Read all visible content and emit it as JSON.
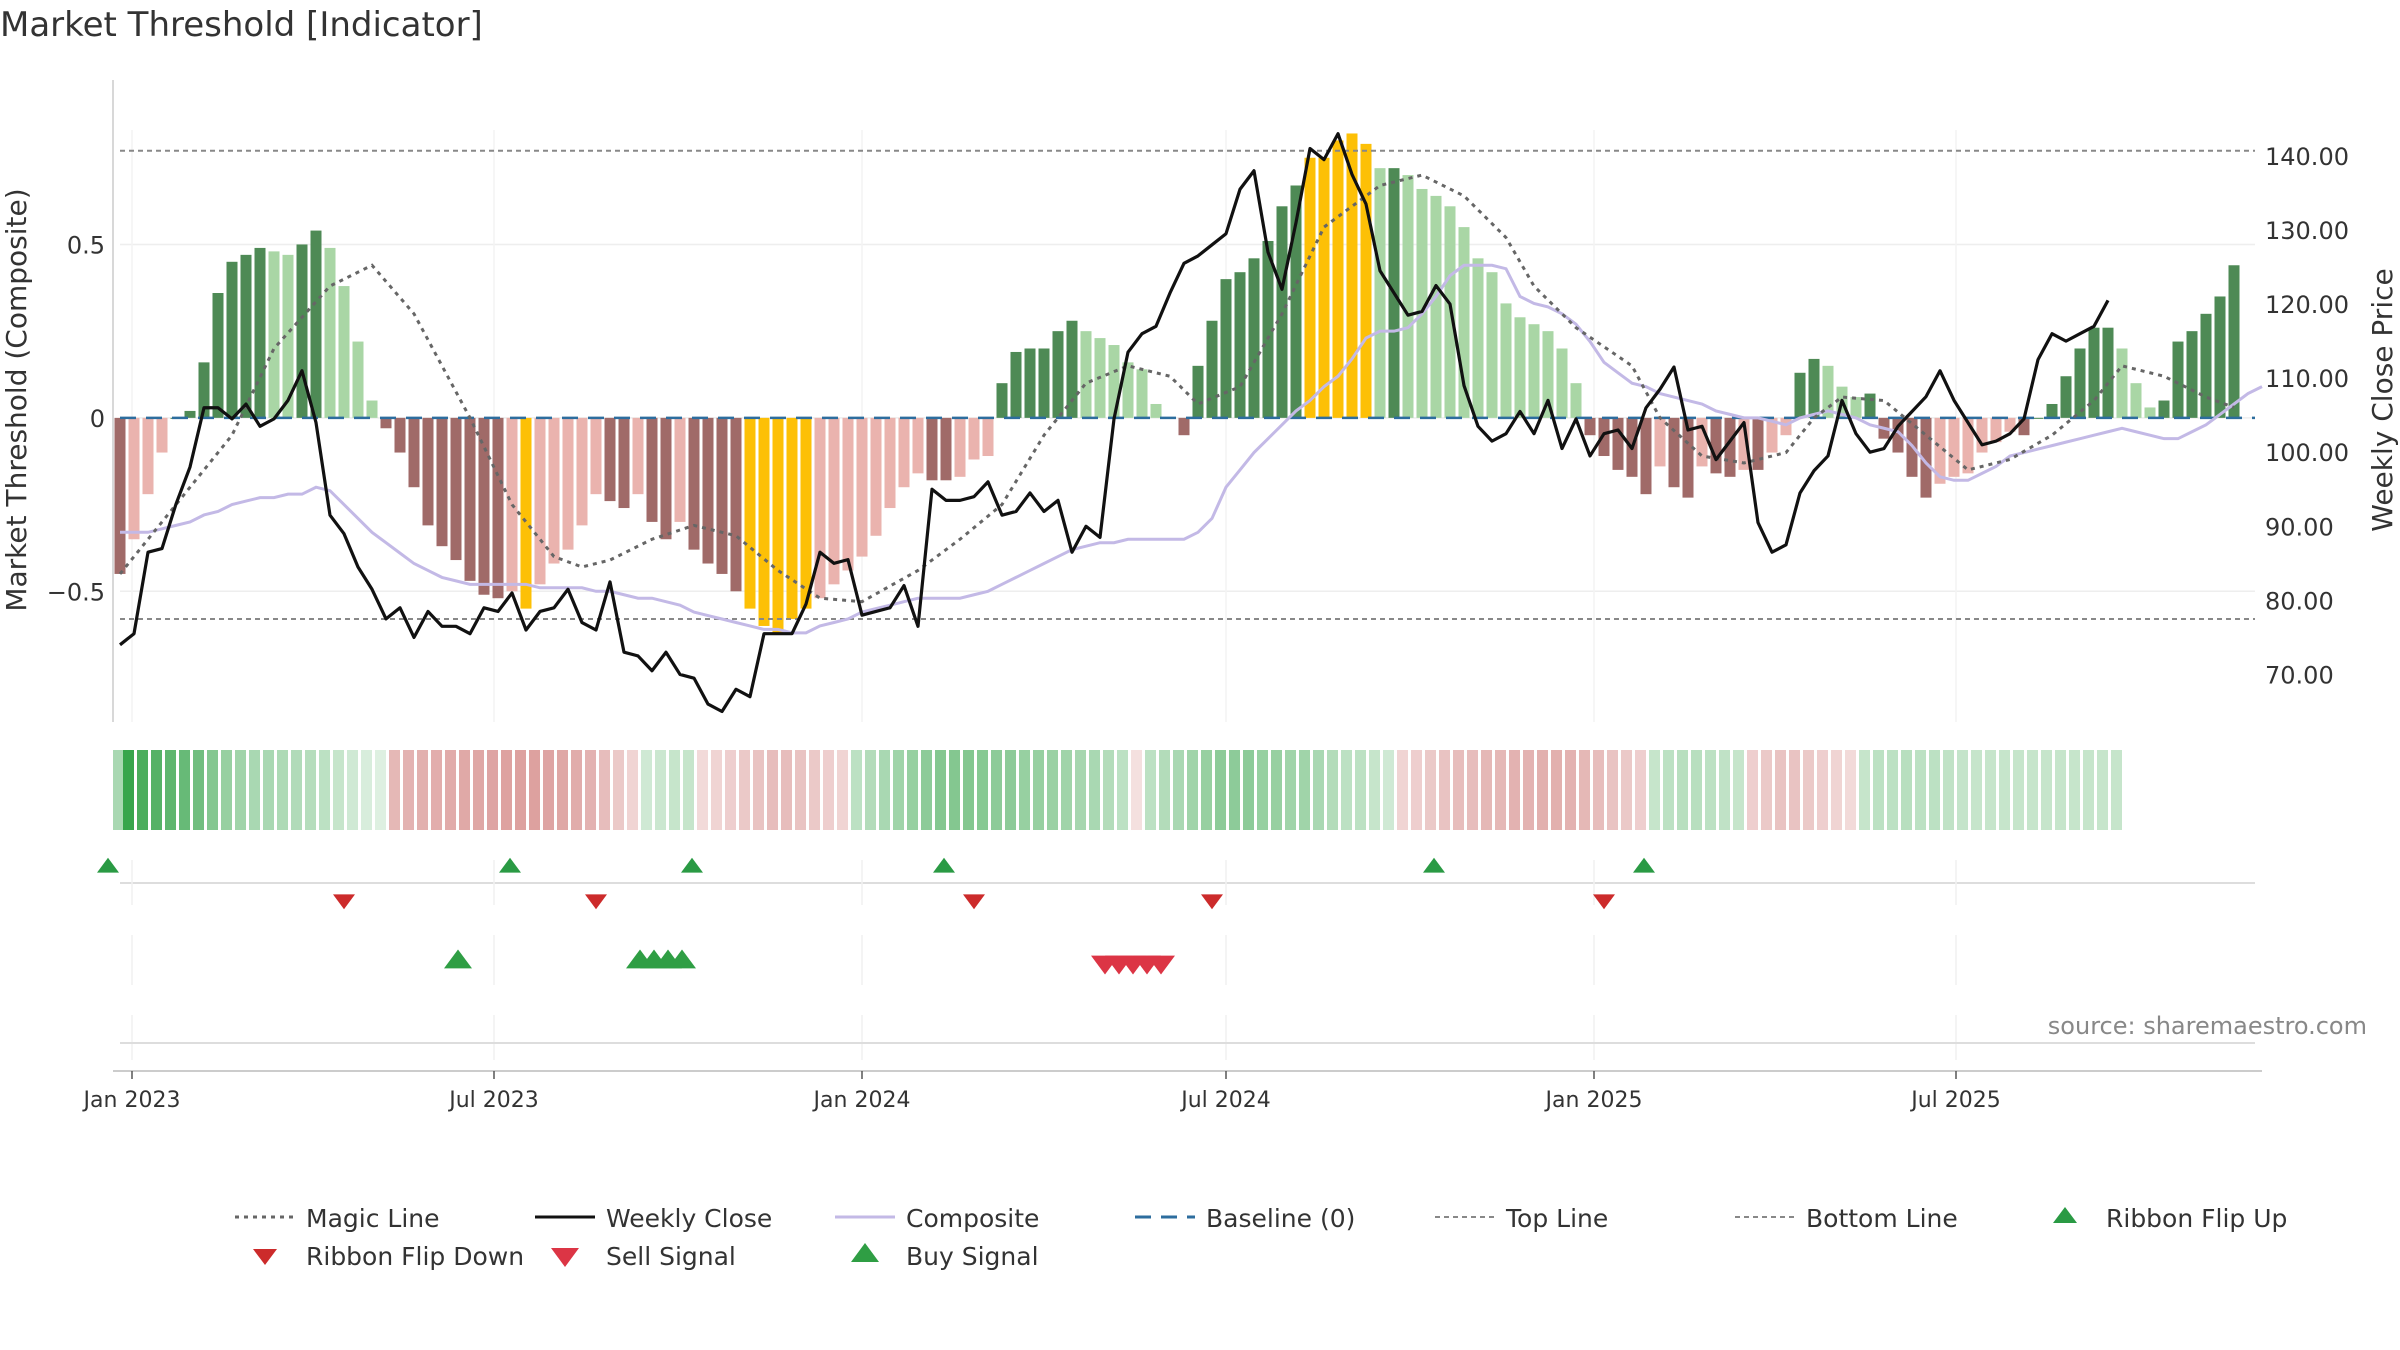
{
  "chart_data": {
    "type": "bar",
    "title": "Market Threshold [Indicator]",
    "ylabel_left": "Market Threshold (Composite)",
    "ylabel_right": "Weekly Close Price",
    "source": "source: sharemaestro.com",
    "date_range": [
      "2022-12-26",
      "2025-09-22"
    ],
    "left_ylim": [
      -0.9,
      0.83
    ],
    "left_ticks": [
      {
        "v": 0.5,
        "label": "0.5"
      },
      {
        "v": 0.0,
        "label": "0"
      },
      {
        "v": -0.5,
        "label": "−0.5"
      }
    ],
    "right_ylim": [
      62.5,
      143.5
    ],
    "right_ticks": [
      {
        "v": 140,
        "label": "140.00"
      },
      {
        "v": 130,
        "label": "130.00"
      },
      {
        "v": 120,
        "label": "120.00"
      },
      {
        "v": 110,
        "label": "110.00"
      },
      {
        "v": 100,
        "label": "100.00"
      },
      {
        "v": 90,
        "label": "90.00"
      },
      {
        "v": 80,
        "label": "80.00"
      },
      {
        "v": 70,
        "label": "70.00"
      }
    ],
    "top_line": 0.77,
    "bottom_line": -0.58,
    "x_ticks": [
      {
        "date": "2023-01-01",
        "label": "Jan 2023"
      },
      {
        "date": "2023-07-01",
        "label": "Jul 2023"
      },
      {
        "date": "2024-01-01",
        "label": "Jan 2024"
      },
      {
        "date": "2024-07-01",
        "label": "Jul 2024"
      },
      {
        "date": "2025-01-01",
        "label": "Jan 2025"
      },
      {
        "date": "2025-07-01",
        "label": "Jul 2025"
      }
    ],
    "histogram": [
      -0.45,
      -0.35,
      -0.22,
      -0.1,
      0.0,
      0.02,
      0.16,
      0.36,
      0.45,
      0.47,
      0.49,
      0.48,
      0.47,
      0.5,
      0.54,
      0.49,
      0.38,
      0.22,
      0.05,
      -0.03,
      -0.1,
      -0.2,
      -0.31,
      -0.37,
      -0.41,
      -0.47,
      -0.51,
      -0.52,
      -0.5,
      -0.55,
      -0.48,
      -0.42,
      -0.38,
      -0.31,
      -0.22,
      -0.24,
      -0.26,
      -0.22,
      -0.3,
      -0.35,
      -0.3,
      -0.38,
      -0.42,
      -0.45,
      -0.5,
      -0.55,
      -0.6,
      -0.62,
      -0.58,
      -0.55,
      -0.52,
      -0.48,
      -0.44,
      -0.4,
      -0.34,
      -0.26,
      -0.2,
      -0.16,
      -0.18,
      -0.18,
      -0.17,
      -0.12,
      -0.11,
      0.1,
      0.19,
      0.2,
      0.2,
      0.25,
      0.28,
      0.25,
      0.23,
      0.21,
      0.16,
      0.14,
      0.04,
      0.0,
      -0.05,
      0.15,
      0.28,
      0.4,
      0.42,
      0.46,
      0.51,
      0.61,
      0.67,
      0.75,
      0.75,
      0.8,
      0.82,
      0.79,
      0.72,
      0.72,
      0.7,
      0.66,
      0.64,
      0.61,
      0.55,
      0.46,
      0.42,
      0.33,
      0.29,
      0.27,
      0.25,
      0.2,
      0.1,
      -0.05,
      -0.11,
      -0.15,
      -0.17,
      -0.22,
      -0.14,
      -0.2,
      -0.23,
      -0.14,
      -0.16,
      -0.17,
      -0.15,
      -0.15,
      -0.1,
      -0.05,
      0.13,
      0.17,
      0.15,
      0.09,
      0.06,
      0.07,
      -0.06,
      -0.1,
      -0.17,
      -0.23,
      -0.19,
      -0.17,
      -0.16,
      -0.1,
      -0.07,
      -0.04,
      -0.05,
      0.0,
      0.04,
      0.12,
      0.2,
      0.26,
      0.26,
      0.2,
      0.1,
      0.03,
      0.05,
      0.22,
      0.25,
      0.3,
      0.35,
      0.44
    ],
    "weekly_close": [
      74.0,
      75.5,
      86.5,
      87.0,
      93.0,
      98.0,
      106.0,
      106.0,
      104.5,
      106.5,
      103.5,
      104.5,
      107.0,
      111.0,
      104.0,
      91.5,
      89.0,
      84.5,
      81.5,
      77.5,
      79.0,
      75.0,
      78.5,
      76.5,
      76.5,
      75.5,
      79.0,
      78.5,
      81.0,
      76.0,
      78.5,
      79.0,
      81.5,
      77.0,
      76.0,
      82.5,
      73.0,
      72.5,
      70.5,
      73.0,
      70.0,
      69.5,
      66.0,
      65.0,
      68.0,
      67.0,
      75.5,
      75.5,
      75.5,
      79.5,
      86.5,
      85.0,
      85.5,
      78.0,
      78.5,
      79.0,
      82.0,
      76.5,
      95.0,
      93.5,
      93.5,
      94.0,
      96.0,
      91.5,
      92.0,
      94.5,
      92.0,
      93.5,
      86.5,
      90.0,
      88.5,
      104.5,
      113.5,
      116.0,
      117.0,
      121.5,
      125.5,
      126.5,
      128.0,
      129.5,
      135.5,
      138.0,
      127.0,
      122.0,
      131.0,
      141.0,
      139.5,
      143.0,
      137.5,
      133.5,
      124.5,
      121.5,
      118.5,
      119.0,
      122.5,
      120.0,
      109.0,
      103.5,
      101.5,
      102.5,
      105.5,
      102.5,
      107.0,
      100.5,
      104.5,
      99.5,
      102.5,
      103.0,
      100.5,
      106.0,
      108.5,
      111.5,
      103.0,
      103.5,
      99.0,
      101.5,
      104.0,
      90.5,
      86.5,
      87.5,
      94.5,
      97.5,
      99.5,
      107.0,
      102.5,
      100.0,
      100.5,
      103.5,
      105.5,
      107.5,
      111.0,
      107.0,
      104.0,
      101.0,
      101.5,
      102.5,
      104.5,
      112.5,
      116.0,
      115.0,
      116.0,
      117.0,
      120.5
    ],
    "composite": [
      -0.33,
      -0.33,
      -0.33,
      -0.32,
      -0.31,
      -0.3,
      -0.28,
      -0.27,
      -0.25,
      -0.24,
      -0.23,
      -0.23,
      -0.22,
      -0.22,
      -0.2,
      -0.21,
      -0.25,
      -0.29,
      -0.33,
      -0.36,
      -0.39,
      -0.42,
      -0.44,
      -0.46,
      -0.47,
      -0.48,
      -0.48,
      -0.48,
      -0.48,
      -0.48,
      -0.49,
      -0.49,
      -0.49,
      -0.49,
      -0.5,
      -0.5,
      -0.51,
      -0.52,
      -0.52,
      -0.53,
      -0.54,
      -0.56,
      -0.57,
      -0.58,
      -0.59,
      -0.6,
      -0.61,
      -0.61,
      -0.62,
      -0.62,
      -0.6,
      -0.59,
      -0.58,
      -0.56,
      -0.55,
      -0.54,
      -0.53,
      -0.52,
      -0.52,
      -0.52,
      -0.52,
      -0.51,
      -0.5,
      -0.48,
      -0.46,
      -0.44,
      -0.42,
      -0.4,
      -0.38,
      -0.37,
      -0.36,
      -0.36,
      -0.35,
      -0.35,
      -0.35,
      -0.35,
      -0.35,
      -0.33,
      -0.29,
      -0.2,
      -0.15,
      -0.1,
      -0.06,
      -0.02,
      0.02,
      0.05,
      0.09,
      0.12,
      0.17,
      0.23,
      0.25,
      0.25,
      0.26,
      0.3,
      0.35,
      0.41,
      0.44,
      0.44,
      0.44,
      0.43,
      0.35,
      0.33,
      0.32,
      0.3,
      0.27,
      0.22,
      0.16,
      0.13,
      0.1,
      0.09,
      0.07,
      0.06,
      0.05,
      0.04,
      0.02,
      0.01,
      0.0,
      0.0,
      -0.01,
      -0.02,
      0.0,
      0.01,
      0.02,
      0.01,
      0.0,
      -0.02,
      -0.03,
      -0.04,
      -0.08,
      -0.13,
      -0.17,
      -0.18,
      -0.18,
      -0.16,
      -0.14,
      -0.11,
      -0.1,
      -0.09,
      -0.08,
      -0.07,
      -0.06,
      -0.05,
      -0.04,
      -0.03,
      -0.04,
      -0.05,
      -0.06,
      -0.06,
      -0.04,
      -0.02,
      0.01,
      0.04,
      0.07,
      0.09
    ],
    "magic_line_points": [
      [
        0,
        -0.45
      ],
      [
        3,
        -0.3
      ],
      [
        8,
        -0.05
      ],
      [
        11,
        0.2
      ],
      [
        15,
        0.38
      ],
      [
        18,
        0.44
      ],
      [
        21,
        0.3
      ],
      [
        25,
        0.0
      ],
      [
        28,
        -0.25
      ],
      [
        31,
        -0.4
      ],
      [
        33,
        -0.43
      ],
      [
        35,
        -0.41
      ],
      [
        38,
        -0.35
      ],
      [
        41,
        -0.31
      ],
      [
        44,
        -0.34
      ],
      [
        47,
        -0.44
      ],
      [
        50,
        -0.52
      ],
      [
        53,
        -0.53
      ],
      [
        57,
        -0.44
      ],
      [
        60,
        -0.35
      ],
      [
        63,
        -0.25
      ],
      [
        66,
        -0.05
      ],
      [
        69,
        0.1
      ],
      [
        72,
        0.15
      ],
      [
        75,
        0.12
      ],
      [
        77,
        0.04
      ],
      [
        80,
        0.09
      ],
      [
        83,
        0.3
      ],
      [
        86,
        0.55
      ],
      [
        90,
        0.67
      ],
      [
        93,
        0.7
      ],
      [
        96,
        0.64
      ],
      [
        99,
        0.52
      ],
      [
        101,
        0.38
      ],
      [
        104,
        0.26
      ],
      [
        108,
        0.15
      ],
      [
        110,
        0.0
      ],
      [
        113,
        -0.11
      ],
      [
        116,
        -0.13
      ],
      [
        119,
        -0.1
      ],
      [
        121,
        0.0
      ],
      [
        123,
        0.06
      ],
      [
        126,
        0.05
      ],
      [
        129,
        -0.05
      ],
      [
        132,
        -0.15
      ],
      [
        135,
        -0.12
      ],
      [
        138,
        -0.05
      ],
      [
        141,
        0.05
      ],
      [
        143,
        0.15
      ],
      [
        146,
        0.12
      ],
      [
        149,
        0.06
      ],
      [
        151,
        0.03
      ]
    ],
    "ribbon": [
      [
        92,
        0.4
      ],
      [
        7,
        1.0
      ],
      [
        7,
        0.9
      ],
      [
        7,
        0.85
      ],
      [
        7,
        0.8
      ],
      [
        7,
        0.75
      ],
      [
        7,
        0.7
      ],
      [
        7,
        0.6
      ],
      [
        7,
        0.5
      ],
      [
        7,
        0.45
      ],
      [
        7,
        0.4
      ],
      [
        7,
        0.4
      ],
      [
        7,
        0.38
      ],
      [
        7,
        0.36
      ],
      [
        7,
        0.34
      ],
      [
        7,
        0.3
      ],
      [
        7,
        0.25
      ],
      [
        7,
        0.2
      ],
      [
        7,
        0.15
      ],
      [
        7,
        0.12
      ],
      [
        0,
        0.55
      ],
      [
        0,
        0.6
      ],
      [
        0,
        0.62
      ],
      [
        0,
        0.64
      ],
      [
        0,
        0.66
      ],
      [
        0,
        0.68
      ],
      [
        0,
        0.7
      ],
      [
        0,
        0.72
      ],
      [
        0,
        0.74
      ],
      [
        0,
        0.75
      ],
      [
        0,
        0.75
      ],
      [
        0,
        0.72
      ],
      [
        0,
        0.7
      ],
      [
        0,
        0.65
      ],
      [
        0,
        0.6
      ],
      [
        0,
        0.5
      ],
      [
        0,
        0.4
      ],
      [
        0,
        0.3
      ],
      [
        7,
        0.2
      ],
      [
        7,
        0.22
      ],
      [
        7,
        0.25
      ],
      [
        7,
        0.25
      ],
      [
        0,
        0.25
      ],
      [
        0,
        0.3
      ],
      [
        0,
        0.35
      ],
      [
        0,
        0.4
      ],
      [
        0,
        0.45
      ],
      [
        0,
        0.5
      ],
      [
        0,
        0.5
      ],
      [
        0,
        0.45
      ],
      [
        0,
        0.4
      ],
      [
        0,
        0.35
      ],
      [
        0,
        0.3
      ],
      [
        7,
        0.3
      ],
      [
        7,
        0.35
      ],
      [
        7,
        0.4
      ],
      [
        7,
        0.45
      ],
      [
        7,
        0.5
      ],
      [
        7,
        0.55
      ],
      [
        7,
        0.6
      ],
      [
        7,
        0.6
      ],
      [
        7,
        0.6
      ],
      [
        7,
        0.58
      ],
      [
        7,
        0.55
      ],
      [
        7,
        0.55
      ],
      [
        7,
        0.5
      ],
      [
        7,
        0.5
      ],
      [
        7,
        0.48
      ],
      [
        7,
        0.45
      ],
      [
        7,
        0.42
      ],
      [
        7,
        0.4
      ],
      [
        7,
        0.35
      ],
      [
        7,
        0.3
      ],
      [
        0,
        0.2
      ],
      [
        7,
        0.3
      ],
      [
        7,
        0.35
      ],
      [
        7,
        0.4
      ],
      [
        7,
        0.45
      ],
      [
        7,
        0.5
      ],
      [
        7,
        0.55
      ],
      [
        7,
        0.55
      ],
      [
        7,
        0.55
      ],
      [
        7,
        0.5
      ],
      [
        7,
        0.5
      ],
      [
        7,
        0.45
      ],
      [
        7,
        0.45
      ],
      [
        7,
        0.4
      ],
      [
        7,
        0.35
      ],
      [
        7,
        0.3
      ],
      [
        7,
        0.3
      ],
      [
        7,
        0.25
      ],
      [
        7,
        0.2
      ],
      [
        0,
        0.3
      ],
      [
        0,
        0.35
      ],
      [
        0,
        0.4
      ],
      [
        0,
        0.45
      ],
      [
        0,
        0.5
      ],
      [
        0,
        0.5
      ],
      [
        0,
        0.55
      ],
      [
        0,
        0.55
      ],
      [
        0,
        0.6
      ],
      [
        0,
        0.6
      ],
      [
        0,
        0.62
      ],
      [
        0,
        0.62
      ],
      [
        0,
        0.6
      ],
      [
        0,
        0.55
      ],
      [
        0,
        0.5
      ],
      [
        0,
        0.45
      ],
      [
        0,
        0.4
      ],
      [
        0,
        0.35
      ],
      [
        7,
        0.25
      ],
      [
        7,
        0.3
      ],
      [
        7,
        0.32
      ],
      [
        7,
        0.32
      ],
      [
        7,
        0.3
      ],
      [
        7,
        0.28
      ],
      [
        7,
        0.25
      ],
      [
        0,
        0.35
      ],
      [
        0,
        0.4
      ],
      [
        0,
        0.45
      ],
      [
        0,
        0.45
      ],
      [
        0,
        0.4
      ],
      [
        0,
        0.35
      ],
      [
        0,
        0.3
      ],
      [
        0,
        0.25
      ],
      [
        7,
        0.25
      ],
      [
        7,
        0.3
      ],
      [
        7,
        0.3
      ],
      [
        7,
        0.32
      ],
      [
        7,
        0.3
      ],
      [
        7,
        0.3
      ],
      [
        7,
        0.28
      ],
      [
        7,
        0.26
      ],
      [
        7,
        0.25
      ],
      [
        7,
        0.25
      ],
      [
        7,
        0.25
      ],
      [
        7,
        0.25
      ],
      [
        7,
        0.25
      ],
      [
        7,
        0.25
      ],
      [
        7,
        0.25
      ],
      [
        7,
        0.25
      ],
      [
        7,
        0.25
      ],
      [
        7,
        0.25
      ],
      [
        7,
        0.25
      ]
    ],
    "ribbon_flip_up": [
      1,
      30,
      43,
      61,
      96,
      111
    ],
    "ribbon_flip_down": [
      16,
      34,
      61,
      78,
      106
    ],
    "buy_signal": [
      24,
      37,
      38,
      39,
      40
    ],
    "sell_signal": [
      69,
      70,
      71,
      72,
      73
    ],
    "legend": [
      {
        "key": "magic",
        "label": "Magic Line"
      },
      {
        "key": "close",
        "label": "Weekly Close"
      },
      {
        "key": "composite",
        "label": "Composite"
      },
      {
        "key": "baseline",
        "label": "Baseline (0)"
      },
      {
        "key": "top",
        "label": "Top Line"
      },
      {
        "key": "bottom",
        "label": "Bottom Line"
      },
      {
        "key": "flipup",
        "label": "Ribbon Flip Up"
      },
      {
        "key": "flipdown",
        "label": "Ribbon Flip Down"
      },
      {
        "key": "sell",
        "label": "Sell Signal"
      },
      {
        "key": "buy",
        "label": "Buy Signal"
      }
    ],
    "colors": {
      "bull_strong": "#4e8a55",
      "bull_weak": "#a9d6a5",
      "bear_strong": "#a06a68",
      "bear_weak": "#eab3ae",
      "extreme": "#fdc006",
      "close_line": "#111111",
      "composite_line": "#c3b9e6",
      "magic_line": "#666666",
      "baseline": "#2d6d9e",
      "ref_line": "#888888",
      "flip_up": "#2a9a44",
      "flip_down": "#cc2b2b",
      "buy": "#2f9e44",
      "sell": "#dc3545"
    }
  }
}
